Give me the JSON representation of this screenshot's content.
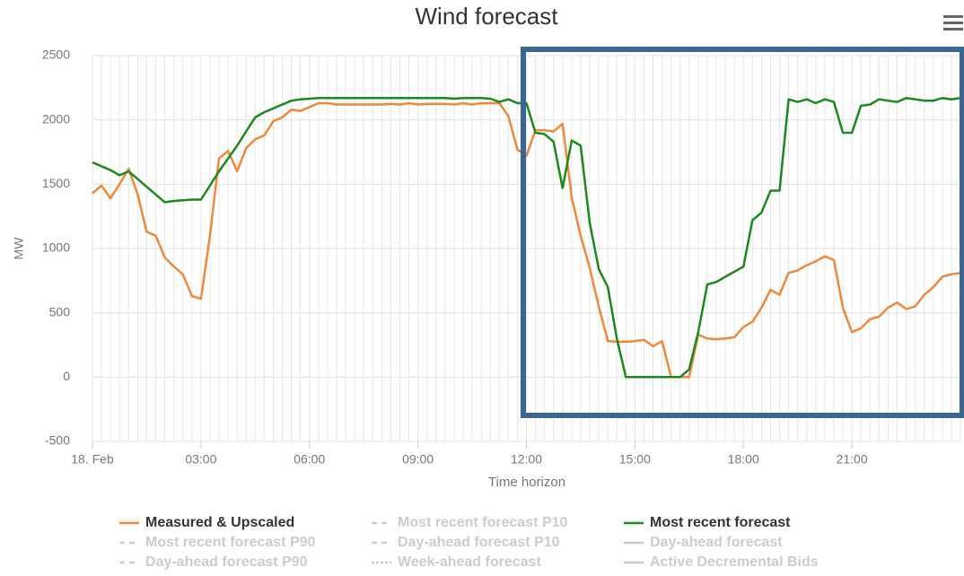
{
  "chart_data": {
    "type": "line",
    "title": "Wind forecast",
    "x_label": "Time horizon",
    "y_label": "MW",
    "xlim": [
      0,
      24
    ],
    "xticks": [
      {
        "value": 0,
        "label": "18. Feb"
      },
      {
        "value": 3,
        "label": "03:00"
      },
      {
        "value": 6,
        "label": "06:00"
      },
      {
        "value": 9,
        "label": "09:00"
      },
      {
        "value": 12,
        "label": "12:00"
      },
      {
        "value": 15,
        "label": "15:00"
      },
      {
        "value": 18,
        "label": "18:00"
      },
      {
        "value": 21,
        "label": "21:00"
      }
    ],
    "x_minor_grid_step": 0.25,
    "ylim": [
      -500,
      2500
    ],
    "yticks": [
      -500,
      0,
      500,
      1000,
      1500,
      2000,
      2500
    ],
    "grid": true,
    "x": [
      0,
      0.25,
      0.5,
      0.75,
      1,
      1.25,
      1.5,
      1.75,
      2,
      2.25,
      2.5,
      2.75,
      3,
      3.25,
      3.5,
      3.75,
      4,
      4.25,
      4.5,
      4.75,
      5,
      5.25,
      5.5,
      5.75,
      6,
      6.25,
      6.5,
      6.75,
      7,
      7.25,
      7.5,
      7.75,
      8,
      8.25,
      8.5,
      8.75,
      9,
      9.25,
      9.5,
      9.75,
      10,
      10.25,
      10.5,
      10.75,
      11,
      11.25,
      11.5,
      11.75,
      12,
      12.25,
      12.5,
      12.75,
      13,
      13.25,
      13.5,
      13.75,
      14,
      14.25,
      14.5,
      14.75,
      15,
      15.25,
      15.5,
      15.75,
      16,
      16.25,
      16.5,
      16.75,
      17,
      17.25,
      17.5,
      17.75,
      18,
      18.25,
      18.5,
      18.75,
      19,
      19.25,
      19.5,
      19.75,
      20,
      20.25,
      20.5,
      20.75,
      21,
      21.25,
      21.5,
      21.75,
      22,
      22.25,
      22.5,
      22.75,
      23,
      23.25,
      23.5,
      23.75,
      24
    ],
    "series": [
      {
        "name": "Measured & Upscaled",
        "color": "#f0883a",
        "values": [
          1430,
          1490,
          1390,
          1500,
          1620,
          1420,
          1130,
          1100,
          930,
          860,
          800,
          630,
          610,
          1100,
          1700,
          1760,
          1600,
          1780,
          1850,
          1880,
          1990,
          2020,
          2080,
          2070,
          2100,
          2130,
          2130,
          2120,
          2120,
          2120,
          2120,
          2120,
          2120,
          2125,
          2120,
          2130,
          2120,
          2125,
          2125,
          2125,
          2120,
          2130,
          2120,
          2130,
          2130,
          2130,
          2030,
          1770,
          1720,
          1920,
          1920,
          1910,
          1970,
          1400,
          1100,
          850,
          550,
          280,
          275,
          275,
          280,
          290,
          240,
          280,
          0,
          0,
          0,
          330,
          300,
          295,
          300,
          310,
          390,
          430,
          540,
          680,
          640,
          810,
          830,
          870,
          900,
          940,
          910,
          540,
          350,
          380,
          450,
          470,
          540,
          580,
          530,
          550,
          640,
          700,
          780,
          800,
          810
        ]
      },
      {
        "name": "Most recent forecast",
        "color": "#1a8a1a",
        "values": [
          1670,
          1640,
          1610,
          1570,
          1600,
          1540,
          1480,
          1420,
          1360,
          1370,
          1375,
          1380,
          1380,
          1490,
          1600,
          1700,
          1800,
          1910,
          2020,
          2060,
          2090,
          2120,
          2150,
          2160,
          2165,
          2170,
          2170,
          2170,
          2170,
          2170,
          2170,
          2170,
          2170,
          2170,
          2170,
          2170,
          2170,
          2170,
          2170,
          2170,
          2165,
          2170,
          2170,
          2170,
          2165,
          2140,
          2160,
          2130,
          2130,
          1900,
          1890,
          1830,
          1470,
          1840,
          1800,
          1200,
          840,
          700,
          300,
          0,
          0,
          0,
          0,
          0,
          0,
          0,
          60,
          350,
          720,
          740,
          780,
          820,
          860,
          1220,
          1280,
          1450,
          1450,
          2160,
          2140,
          2160,
          2130,
          2160,
          2140,
          1900,
          1900,
          2110,
          2120,
          2160,
          2150,
          2140,
          2170,
          2160,
          2150,
          2150,
          2170,
          2160,
          2170
        ]
      }
    ],
    "hidden_series": [
      {
        "name": "Most recent forecast P10",
        "dash": "dashed"
      },
      {
        "name": "Most recent forecast P90",
        "dash": "dashed"
      },
      {
        "name": "Day-ahead forecast P10",
        "dash": "dashed"
      },
      {
        "name": "Day-ahead forecast",
        "dash": "solid"
      },
      {
        "name": "Day-ahead forecast P90",
        "dash": "dashed"
      },
      {
        "name": "Week-ahead forecast",
        "dash": "dotted"
      },
      {
        "name": "Active Decremental Bids",
        "dash": "solid"
      }
    ]
  }
}
